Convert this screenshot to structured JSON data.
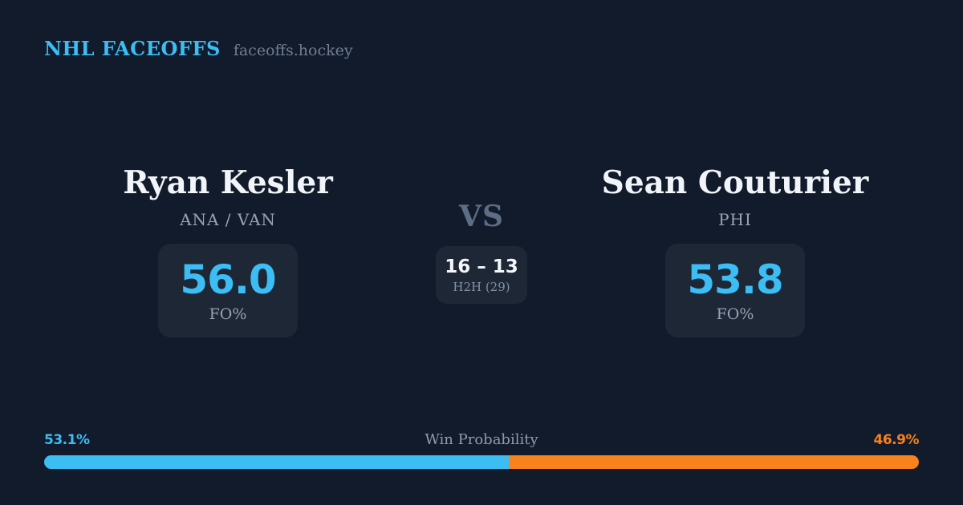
{
  "header": {
    "brand": "NHL FACEOFFS",
    "site": "faceoffs.hockey"
  },
  "players": {
    "left": {
      "name": "Ryan Kesler",
      "teams": "ANA / VAN",
      "fo_value": "56.0",
      "fo_label": "FO%"
    },
    "right": {
      "name": "Sean Couturier",
      "teams": "PHI",
      "fo_value": "53.8",
      "fo_label": "FO%"
    }
  },
  "matchup": {
    "vs_label": "VS",
    "h2h_score": "16 – 13",
    "h2h_label": "H2H (29)"
  },
  "win_probability": {
    "title": "Win Probability",
    "left_label": "53.1%",
    "right_label": "46.9%",
    "left_value": 53.1,
    "right_value": 46.9
  },
  "colors": {
    "background": "#121b2b",
    "card": "#1d2736",
    "accent_blue": "#3cbdf4",
    "accent_orange": "#f8821d",
    "text_primary": "#f1f5f9",
    "text_muted": "#96a3b4",
    "vs_text": "#5d6d85"
  }
}
